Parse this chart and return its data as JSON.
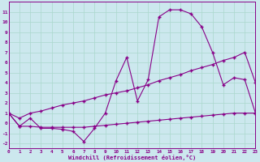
{
  "x": [
    0,
    1,
    2,
    3,
    4,
    5,
    6,
    7,
    8,
    9,
    10,
    11,
    12,
    13,
    14,
    15,
    16,
    17,
    18,
    19,
    20,
    21,
    22,
    23
  ],
  "line_main": [
    1.0,
    -0.3,
    0.5,
    -0.5,
    -0.5,
    -0.6,
    -0.8,
    -1.8,
    -0.5,
    1.0,
    4.2,
    6.5,
    2.2,
    4.3,
    10.5,
    11.2,
    11.2,
    10.8,
    9.5,
    7.0,
    3.8,
    4.5,
    4.3,
    1.0
  ],
  "line_upper": [
    1.0,
    0.5,
    1.0,
    1.2,
    1.5,
    1.8,
    2.0,
    2.2,
    2.5,
    2.8,
    3.0,
    3.2,
    3.5,
    3.8,
    4.2,
    4.5,
    4.8,
    5.2,
    5.5,
    5.8,
    6.2,
    6.5,
    7.0,
    4.0
  ],
  "line_lower": [
    1.0,
    -0.3,
    -0.3,
    -0.4,
    -0.4,
    -0.4,
    -0.4,
    -0.4,
    -0.3,
    -0.2,
    -0.1,
    0.0,
    0.1,
    0.2,
    0.3,
    0.4,
    0.5,
    0.6,
    0.7,
    0.8,
    0.9,
    1.0,
    1.0,
    1.0
  ],
  "bg_color": "#cce8ee",
  "line_color": "#880088",
  "grid_color": "#aad8cc",
  "xlabel": "Windchill (Refroidissement éolien,°C)",
  "ylim": [
    -2.5,
    12.0
  ],
  "xlim": [
    0,
    23
  ],
  "yticks": [
    -2,
    -1,
    0,
    1,
    2,
    3,
    4,
    5,
    6,
    7,
    8,
    9,
    10,
    11
  ],
  "xticks": [
    0,
    1,
    2,
    3,
    4,
    5,
    6,
    7,
    8,
    9,
    10,
    11,
    12,
    13,
    14,
    15,
    16,
    17,
    18,
    19,
    20,
    21,
    22,
    23
  ]
}
